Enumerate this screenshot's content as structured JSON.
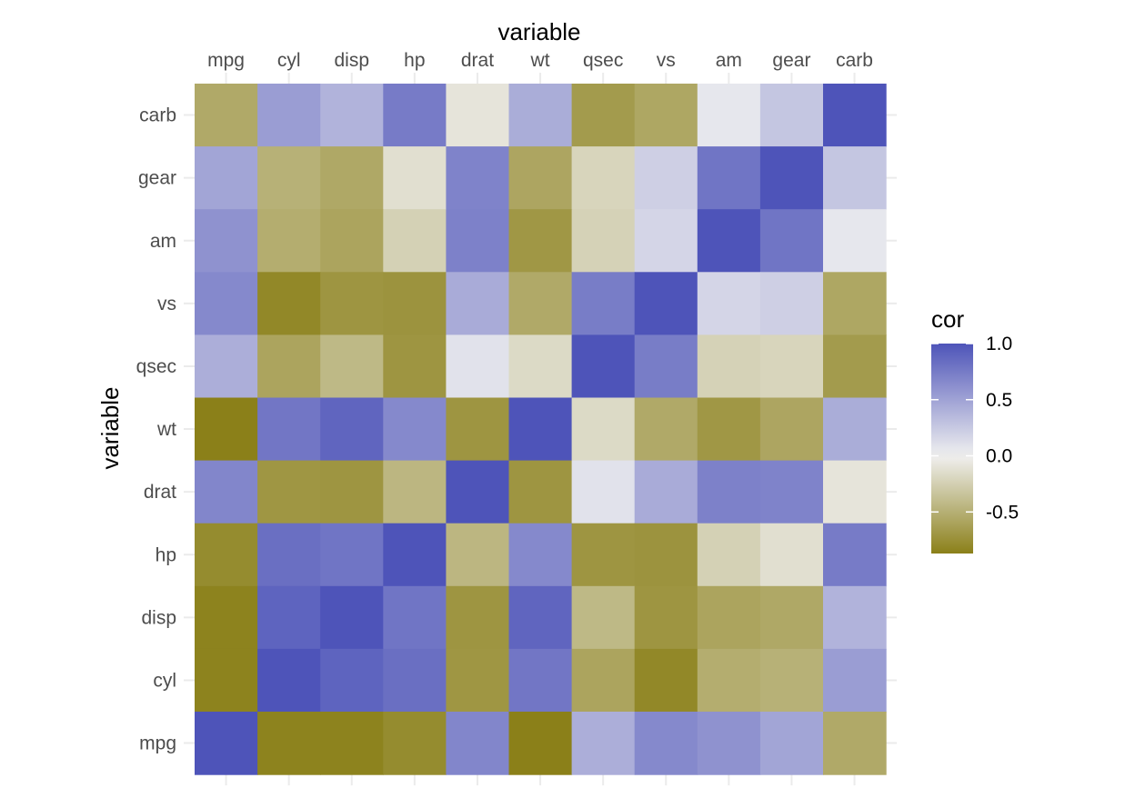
{
  "chart_data": {
    "type": "heatmap",
    "title": "",
    "xlabel": "variable",
    "ylabel": "variable",
    "x_axis_position": "top",
    "x_categories": [
      "mpg",
      "cyl",
      "disp",
      "hp",
      "drat",
      "wt",
      "qsec",
      "vs",
      "am",
      "gear",
      "carb"
    ],
    "y_categories_top_to_bottom": [
      "carb",
      "gear",
      "am",
      "vs",
      "qsec",
      "wt",
      "drat",
      "hp",
      "disp",
      "cyl",
      "mpg"
    ],
    "matrix_rows_top_to_bottom": [
      [
        -0.55,
        0.53,
        0.39,
        0.75,
        -0.09,
        0.43,
        -0.66,
        -0.57,
        0.06,
        0.27,
        1.0
      ],
      [
        0.48,
        -0.49,
        -0.56,
        -0.13,
        0.7,
        -0.58,
        -0.21,
        0.21,
        0.79,
        1.0,
        0.27
      ],
      [
        0.6,
        -0.52,
        -0.59,
        -0.24,
        0.71,
        -0.69,
        -0.23,
        0.17,
        1.0,
        0.79,
        0.06
      ],
      [
        0.66,
        -0.81,
        -0.71,
        -0.72,
        0.44,
        -0.55,
        0.74,
        1.0,
        0.17,
        0.21,
        -0.57
      ],
      [
        0.42,
        -0.59,
        -0.43,
        -0.71,
        0.09,
        -0.17,
        1.0,
        0.74,
        -0.23,
        -0.21,
        -0.66
      ],
      [
        -0.87,
        0.78,
        0.89,
        0.66,
        -0.71,
        1.0,
        -0.17,
        -0.55,
        -0.69,
        -0.58,
        0.43
      ],
      [
        0.68,
        -0.7,
        -0.71,
        -0.45,
        1.0,
        -0.71,
        0.09,
        0.44,
        0.71,
        0.7,
        -0.09
      ],
      [
        -0.78,
        0.83,
        0.79,
        1.0,
        -0.45,
        0.66,
        -0.71,
        -0.72,
        -0.24,
        -0.13,
        0.75
      ],
      [
        -0.85,
        0.9,
        1.0,
        0.79,
        -0.71,
        0.89,
        -0.43,
        -0.71,
        -0.59,
        -0.56,
        0.39
      ],
      [
        -0.85,
        1.0,
        0.9,
        0.83,
        -0.7,
        0.78,
        -0.59,
        -0.81,
        -0.52,
        -0.49,
        0.53
      ],
      [
        1.0,
        -0.85,
        -0.85,
        -0.78,
        0.68,
        -0.87,
        0.42,
        0.66,
        0.6,
        0.48,
        -0.55
      ]
    ],
    "grid": true,
    "legend": {
      "title": "cor",
      "placement": "right",
      "ticks": [
        1.0,
        0.5,
        0.0,
        -0.5
      ],
      "tick_labels": [
        "1.0",
        "0.5",
        "0.0",
        "-0.5"
      ],
      "range": [
        -0.87,
        1.0
      ]
    },
    "colors": {
      "low": "#8b8019",
      "mid": "#f0f0f0",
      "high": "#4e54b9"
    }
  }
}
